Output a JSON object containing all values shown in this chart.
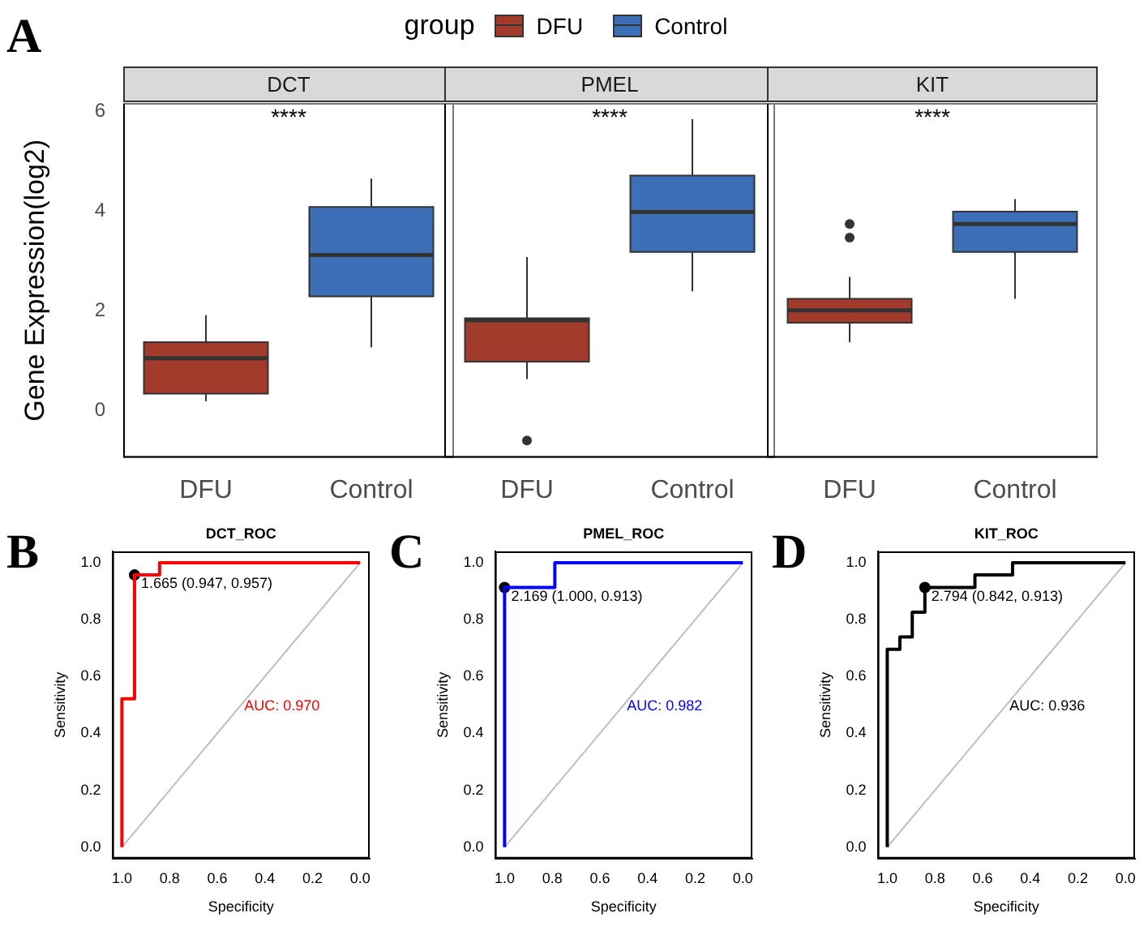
{
  "chart_data": [
    {
      "type": "box",
      "title": "DCT",
      "ylabel": "Gene Expression(log2)",
      "legend_title": "group",
      "legend": "top",
      "categories": [
        "DFU",
        "Control"
      ],
      "ylim": [
        -0.93,
        6.15
      ],
      "yticks": [
        0,
        2,
        4,
        6
      ],
      "annotations": [
        "A",
        "****"
      ],
      "series": [
        {
          "name": "DFU",
          "color": "#a23b2c",
          "boxes": [
            {
              "low": 0.19,
              "q1": 0.34,
              "median": 1.05,
              "q3": 1.37,
              "high": 1.91
            },
            null
          ]
        },
        {
          "name": "Control",
          "color": "#3d6fb6",
          "boxes": [
            null,
            {
              "low": 1.27,
              "q1": 2.29,
              "median": 3.12,
              "q3": 4.08,
              "high": 4.65
            }
          ]
        }
      ]
    },
    {
      "type": "box",
      "title": "PMEL",
      "categories": [
        "DFU",
        "Control"
      ],
      "ylim": [
        -0.93,
        6.15
      ],
      "yticks": [
        0,
        2,
        4,
        6
      ],
      "tick_labels": "x",
      "annotations": [
        "****"
      ],
      "series": [
        {
          "color": "#a23b2c",
          "boxes": [
            {
              "low": 0.63,
              "q1": 0.98,
              "median": 1.81,
              "q3": 1.85,
              "high": 3.08,
              "outliers": [
                -0.6
              ]
            },
            null
          ]
        },
        {
          "color": "#3d6fb6",
          "boxes": [
            null,
            {
              "low": 2.39,
              "q1": 3.18,
              "median": 3.98,
              "q3": 4.71,
              "high": 5.84
            }
          ]
        }
      ]
    },
    {
      "type": "box",
      "title": "KIT",
      "categories": [
        "DFU",
        "Control"
      ],
      "ylim": [
        -0.93,
        6.15
      ],
      "yticks": [
        0,
        2,
        4,
        6
      ],
      "tick_labels": "x",
      "annotations": [
        "****"
      ],
      "series": [
        {
          "color": "#a23b2c",
          "boxes": [
            {
              "low": 1.37,
              "q1": 1.76,
              "median": 2.01,
              "q3": 2.24,
              "high": 2.68,
              "outliers": [
                3.74,
                3.47
              ]
            },
            null
          ]
        },
        {
          "color": "#3d6fb6",
          "boxes": [
            null,
            {
              "low": 2.24,
              "q1": 3.18,
              "median": 3.74,
              "q3": 3.99,
              "high": 4.24
            }
          ]
        }
      ]
    },
    {
      "type": "line",
      "title": "DCT_ROC",
      "xlabel": "Specificity",
      "ylabel": "Sensitivity",
      "xlim": [
        1.04,
        -0.04
      ],
      "ylim": [
        -0.04,
        1.04
      ],
      "marker": "none",
      "xticks": [
        {
          "value": 1,
          "label": "1.0"
        },
        {
          "value": 0.8,
          "label": "0.8"
        },
        {
          "value": 0.6,
          "label": "0.6"
        },
        {
          "value": 0.4,
          "label": "0.4"
        },
        {
          "value": 0.2,
          "label": "0.2"
        },
        {
          "value": 0,
          "label": "0.0"
        }
      ],
      "yticks": [
        {
          "value": 0,
          "label": "0.0"
        },
        {
          "value": 0.2,
          "label": "0.2"
        },
        {
          "value": 0.4,
          "label": "0.4"
        },
        {
          "value": 0.6,
          "label": "0.6"
        },
        {
          "value": 0.8,
          "label": "0.8"
        },
        {
          "value": 1,
          "label": "1.0"
        }
      ],
      "annotations": [
        "B",
        "AUC: 0.970",
        {
          "text": "1.665 (0.947, 0.957)",
          "x": 0.947,
          "y": 0.957
        }
      ],
      "series": [
        {
          "color": "#ff0000",
          "x": [
            1,
            1,
            0.947,
            0.947,
            0.842,
            0.842,
            0
          ],
          "values": [
            0,
            0.522,
            0.522,
            0.957,
            0.957,
            1,
            1
          ]
        },
        {
          "color": "#bebebe",
          "x": [
            1,
            0
          ],
          "values": [
            0,
            1
          ]
        },
        {
          "type": "scatter",
          "marker": "circle",
          "color": "#000000",
          "x": [
            0.947
          ],
          "values": [
            0.957
          ]
        }
      ]
    },
    {
      "type": "line",
      "title": "PMEL_ROC",
      "xlabel": "Specificity",
      "ylabel": "Sensitivity",
      "xlim": [
        1.04,
        -0.04
      ],
      "ylim": [
        -0.04,
        1.04
      ],
      "marker": "none",
      "xticks": [
        {
          "value": 1,
          "label": "1.0"
        },
        {
          "value": 0.8,
          "label": "0.8"
        },
        {
          "value": 0.6,
          "label": "0.6"
        },
        {
          "value": 0.4,
          "label": "0.4"
        },
        {
          "value": 0.2,
          "label": "0.2"
        },
        {
          "value": 0,
          "label": "0.0"
        }
      ],
      "yticks": [
        {
          "value": 0,
          "label": "0.0"
        },
        {
          "value": 0.2,
          "label": "0.2"
        },
        {
          "value": 0.4,
          "label": "0.4"
        },
        {
          "value": 0.6,
          "label": "0.6"
        },
        {
          "value": 0.8,
          "label": "0.8"
        },
        {
          "value": 1,
          "label": "1.0"
        }
      ],
      "annotations": [
        "C",
        "AUC: 0.982",
        {
          "text": "2.169 (1.000, 0.913)",
          "x": 1,
          "y": 0.913
        }
      ],
      "series": [
        {
          "color": "#0000ff",
          "x": [
            1,
            1,
            0.789,
            0.789,
            0
          ],
          "values": [
            0,
            0.913,
            0.913,
            1,
            1
          ]
        },
        {
          "color": "#bebebe",
          "x": [
            1,
            0
          ],
          "values": [
            0,
            1
          ]
        },
        {
          "type": "scatter",
          "marker": "circle",
          "color": "#000000",
          "x": [
            1
          ],
          "values": [
            0.913
          ]
        }
      ]
    },
    {
      "type": "line",
      "title": "KIT_ROC",
      "xlabel": "Specificity",
      "ylabel": "Sensitivity",
      "xlim": [
        1.04,
        -0.04
      ],
      "ylim": [
        -0.04,
        1.04
      ],
      "marker": "none",
      "xticks": [
        {
          "value": 1,
          "label": "1.0"
        },
        {
          "value": 0.8,
          "label": "0.8"
        },
        {
          "value": 0.6,
          "label": "0.6"
        },
        {
          "value": 0.4,
          "label": "0.4"
        },
        {
          "value": 0.2,
          "label": "0.2"
        },
        {
          "value": 0,
          "label": "0.0"
        }
      ],
      "yticks": [
        {
          "value": 0,
          "label": "0.0"
        },
        {
          "value": 0.2,
          "label": "0.2"
        },
        {
          "value": 0.4,
          "label": "0.4"
        },
        {
          "value": 0.6,
          "label": "0.6"
        },
        {
          "value": 0.8,
          "label": "0.8"
        },
        {
          "value": 1,
          "label": "1.0"
        }
      ],
      "annotations": [
        "D",
        "AUC: 0.936",
        {
          "text": "2.794 (0.842, 0.913)",
          "x": 0.842,
          "y": 0.913
        }
      ],
      "series": [
        {
          "color": "#000000",
          "x": [
            1,
            1,
            0.947,
            0.947,
            0.895,
            0.895,
            0.842,
            0.842,
            0.632,
            0.632,
            0.474,
            0.474,
            0
          ],
          "values": [
            0,
            0.696,
            0.696,
            0.739,
            0.739,
            0.826,
            0.826,
            0.913,
            0.913,
            0.957,
            0.957,
            1,
            1
          ]
        },
        {
          "color": "#bebebe",
          "x": [
            1,
            0
          ],
          "values": [
            0,
            1
          ]
        },
        {
          "type": "scatter",
          "marker": "circle",
          "color": "#000000",
          "x": [
            0.842
          ],
          "values": [
            0.913
          ]
        }
      ]
    }
  ]
}
